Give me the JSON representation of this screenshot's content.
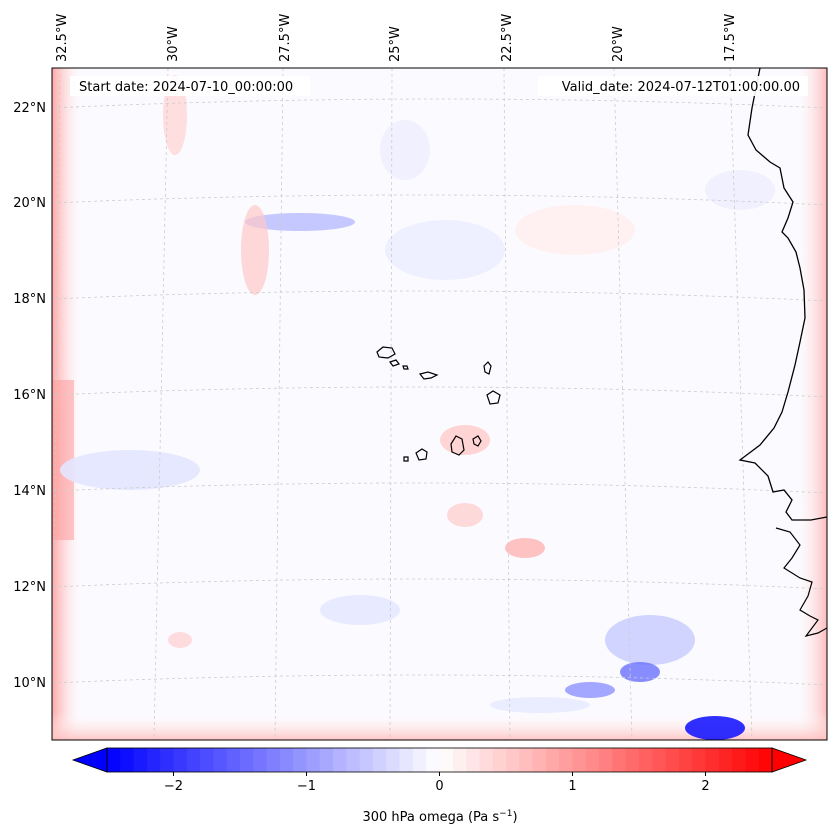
{
  "map": {
    "lon_ticks": [
      "32.5°W",
      "30°W",
      "27.5°W",
      "25°W",
      "22.5°W",
      "20°W",
      "17.5°W"
    ],
    "lat_ticks": [
      "22°N",
      "20°N",
      "18°N",
      "16°N",
      "14°N",
      "12°N",
      "10°N"
    ],
    "start_date_text": "Start date: 2024-07-10_00:00:00",
    "valid_date_text": "Valid_date: 2024-07-12T01:00:00.00"
  },
  "colorbar": {
    "ticks": [
      "−2",
      "−1",
      "0",
      "1",
      "2"
    ],
    "tick_values": [
      -2,
      -1,
      0,
      1,
      2
    ],
    "vmin": -2.5,
    "vmax": 2.5,
    "label_main": "300 hPa omega (Pa s",
    "label_exp": "−1",
    "label_close": ")",
    "colors": {
      "neg": "#0000ff",
      "mid": "#ffffff",
      "pos": "#ff0000"
    }
  }
}
